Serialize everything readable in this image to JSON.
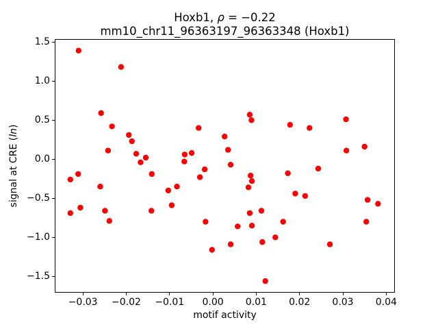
{
  "chart_data": {
    "type": "scatter",
    "title_line1": {
      "prefix": "Hoxb1, ",
      "rho": "ρ",
      "suffix": " = −0.22"
    },
    "title_line2": "mm10_chr11_96363197_96363348 (Hoxb1)",
    "xlabel": "motif activity",
    "ylabel": {
      "prefix": "signal at CRE (",
      "italic": "ln",
      "suffix": ")"
    },
    "marker_color": "#ff0000",
    "marker_radius_px": 4.2,
    "grid": false,
    "legend": null,
    "xlim": [
      -0.0365,
      0.042
    ],
    "ylim": [
      -1.708,
      1.533
    ],
    "x_ticks": [
      {
        "value": -0.03,
        "label": "−0.03"
      },
      {
        "value": -0.02,
        "label": "−0.02"
      },
      {
        "value": -0.01,
        "label": "−0.01"
      },
      {
        "value": 0.0,
        "label": "0.00"
      },
      {
        "value": 0.01,
        "label": "0.01"
      },
      {
        "value": 0.02,
        "label": "0.02"
      },
      {
        "value": 0.03,
        "label": "0.03"
      },
      {
        "value": 0.04,
        "label": "0.04"
      }
    ],
    "y_ticks": [
      {
        "value": 1.5,
        "label": "1.5"
      },
      {
        "value": 1.0,
        "label": "1.0"
      },
      {
        "value": 0.5,
        "label": "0.5"
      },
      {
        "value": 0.0,
        "label": "0.0"
      },
      {
        "value": -0.5,
        "label": "−0.5"
      },
      {
        "value": -1.0,
        "label": "−1.0"
      },
      {
        "value": -1.5,
        "label": "−1.5"
      }
    ],
    "points": [
      [
        -0.031,
        1.39
      ],
      [
        -0.0212,
        1.18
      ],
      [
        -0.0258,
        0.59
      ],
      [
        -0.0233,
        0.42
      ],
      [
        -0.0194,
        0.31
      ],
      [
        -0.0187,
        0.23
      ],
      [
        -0.0242,
        0.11
      ],
      [
        -0.0177,
        0.07
      ],
      [
        -0.0155,
        0.02
      ],
      [
        -0.0167,
        -0.04
      ],
      [
        0.0085,
        0.57
      ],
      [
        0.0089,
        0.5
      ],
      [
        -0.0033,
        0.4
      ],
      [
        0.0027,
        0.29
      ],
      [
        0.0035,
        0.12
      ],
      [
        -0.0049,
        0.08
      ],
      [
        -0.0065,
        0.06
      ],
      [
        -0.0066,
        -0.03
      ],
      [
        -0.0019,
        -0.13
      ],
      [
        0.0041,
        -0.07
      ],
      [
        0.0307,
        0.51
      ],
      [
        0.0178,
        0.44
      ],
      [
        0.0223,
        0.4
      ],
      [
        0.0308,
        0.11
      ],
      [
        0.035,
        0.16
      ],
      [
        -0.0311,
        -0.19
      ],
      [
        -0.0329,
        -0.26
      ],
      [
        -0.026,
        -0.35
      ],
      [
        -0.0141,
        -0.19
      ],
      [
        -0.0103,
        -0.4
      ],
      [
        -0.0095,
        -0.59
      ],
      [
        -0.0306,
        -0.62
      ],
      [
        -0.0329,
        -0.69
      ],
      [
        -0.0249,
        -0.66
      ],
      [
        -0.0142,
        -0.66
      ],
      [
        -0.0239,
        -0.79
      ],
      [
        -0.003,
        -0.23
      ],
      [
        0.0087,
        -0.21
      ],
      [
        0.009,
        -0.28
      ],
      [
        -0.0083,
        -0.35
      ],
      [
        0.0082,
        -0.36
      ],
      [
        0.0085,
        -0.69
      ],
      [
        0.0112,
        -0.66
      ],
      [
        -0.0017,
        -0.8
      ],
      [
        0.0057,
        -0.86
      ],
      [
        0.009,
        -0.85
      ],
      [
        0.0144,
        -1.0
      ],
      [
        0.0114,
        -1.06
      ],
      [
        0.0041,
        -1.09
      ],
      [
        -0.0002,
        -1.16
      ],
      [
        0.0121,
        -1.56
      ],
      [
        0.0243,
        -0.12
      ],
      [
        0.0173,
        -0.18
      ],
      [
        0.019,
        -0.44
      ],
      [
        0.0213,
        -0.47
      ],
      [
        0.0357,
        -0.52
      ],
      [
        0.0381,
        -0.57
      ],
      [
        0.0162,
        -0.8
      ],
      [
        0.0354,
        -0.8
      ],
      [
        0.027,
        -1.09
      ]
    ]
  }
}
